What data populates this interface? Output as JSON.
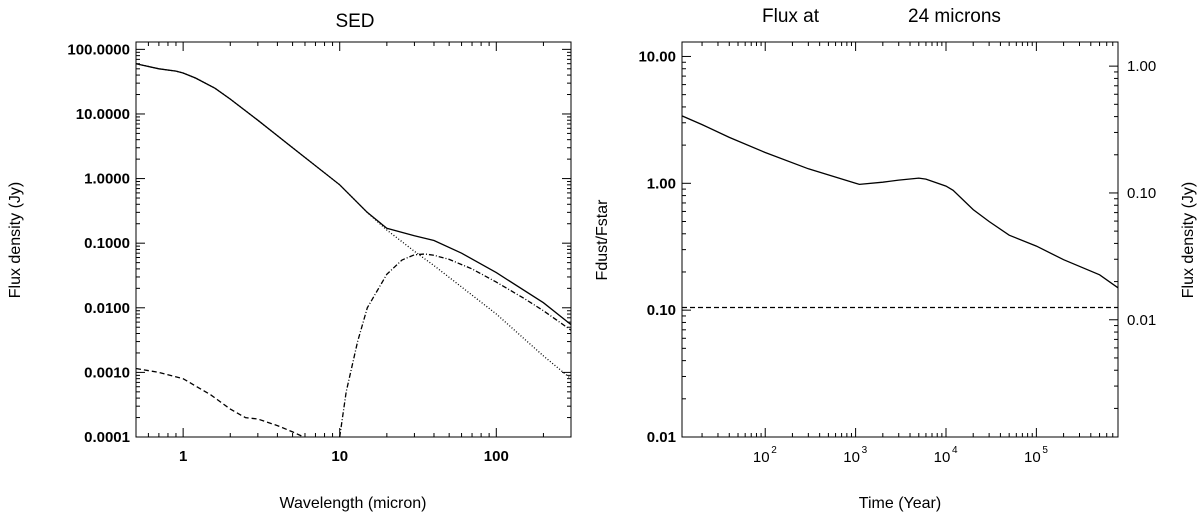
{
  "chart_data": [
    {
      "type": "line",
      "title": "SED",
      "xlabel": "Wavelength (micron)",
      "ylabel": "Flux density (Jy)",
      "xscale": "log",
      "yscale": "log",
      "xlim": [
        0.5,
        300
      ],
      "ylim": [
        0.0001,
        130
      ],
      "x_ticks": [
        1,
        10,
        100
      ],
      "x_tick_labels": [
        "1",
        "10",
        "100"
      ],
      "y_ticks": [
        0.0001,
        0.001,
        0.01,
        0.1,
        1,
        10,
        100
      ],
      "y_tick_labels": [
        "0.0001",
        "0.0010",
        "0.0100",
        "0.1000",
        "1.0000",
        "10.0000",
        "100.0000"
      ],
      "grid": false,
      "series": [
        {
          "style": "solid",
          "x": [
            0.5,
            0.7,
            0.9,
            1.0,
            1.2,
            1.6,
            2.0,
            3.0,
            5.0,
            10,
            15,
            20,
            30,
            40,
            60,
            100,
            200,
            300
          ],
          "y": [
            60,
            50,
            46,
            43,
            36,
            25,
            17,
            8,
            3,
            0.8,
            0.3,
            0.17,
            0.13,
            0.11,
            0.07,
            0.035,
            0.012,
            0.0055
          ]
        },
        {
          "style": "dotted",
          "x": [
            0.5,
            0.7,
            0.9,
            1.0,
            1.2,
            1.6,
            2.0,
            3.0,
            5.0,
            10,
            15,
            20,
            30,
            40,
            60,
            100,
            200,
            300
          ],
          "y": [
            60,
            50,
            46,
            43,
            36,
            25,
            17,
            8,
            3,
            0.8,
            0.3,
            0.16,
            0.075,
            0.045,
            0.021,
            0.008,
            0.0018,
            0.0008
          ]
        },
        {
          "style": "dash-dot",
          "x": [
            10,
            11,
            13,
            15,
            20,
            25,
            30,
            35,
            40,
            50,
            70,
            100,
            150,
            200,
            300
          ],
          "y": [
            0.0001,
            0.0005,
            0.003,
            0.01,
            0.033,
            0.055,
            0.066,
            0.068,
            0.065,
            0.056,
            0.04,
            0.025,
            0.014,
            0.009,
            0.0045
          ]
        },
        {
          "style": "dashed",
          "x": [
            0.5,
            0.7,
            1.0,
            1.5,
            2.0,
            2.5,
            3.0,
            4.0,
            5.0,
            5.9
          ],
          "y": [
            0.00115,
            0.001,
            0.0008,
            0.00045,
            0.00027,
            0.0002,
            0.00019,
            0.00015,
            0.00012,
            0.0001
          ]
        }
      ]
    },
    {
      "type": "line",
      "title_prefix": "Flux at",
      "title_suffix": "24 microns",
      "xlabel": "Time (Year)",
      "ylabel_left": "Fdust/Fstar",
      "ylabel_right": "Flux density (Jy)",
      "xscale": "log",
      "yscale": "log",
      "xlim": [
        12,
        800000
      ],
      "ylim": [
        0.01,
        13
      ],
      "ylim_right": [
        0.00119,
        1.55
      ],
      "x_ticks": [
        100,
        1000,
        10000,
        100000
      ],
      "x_tick_base": "10",
      "x_tick_exponents": [
        "2",
        "3",
        "4",
        "5"
      ],
      "y_ticks_left": [
        0.01,
        0.1,
        1,
        10
      ],
      "y_tick_labels_left": [
        "0.01",
        "0.10",
        "1.00",
        "10.00"
      ],
      "y_ticks_right": [
        0.01,
        0.1,
        1
      ],
      "y_tick_labels_right": [
        "0.01",
        "0.10",
        "1.00"
      ],
      "grid": false,
      "series": [
        {
          "style": "solid",
          "x": [
            12,
            20,
            40,
            100,
            300,
            1000,
            1100,
            2000,
            3000,
            5000,
            6000,
            10000,
            12000,
            20000,
            30000,
            50000,
            100000,
            200000,
            500000,
            800000
          ],
          "y": [
            3.4,
            2.9,
            2.3,
            1.75,
            1.3,
            1.0,
            0.98,
            1.02,
            1.06,
            1.1,
            1.08,
            0.95,
            0.88,
            0.62,
            0.5,
            0.39,
            0.32,
            0.25,
            0.19,
            0.15
          ]
        },
        {
          "style": "dashed",
          "x": [
            12,
            800000
          ],
          "y": [
            0.105,
            0.105
          ]
        }
      ]
    }
  ]
}
